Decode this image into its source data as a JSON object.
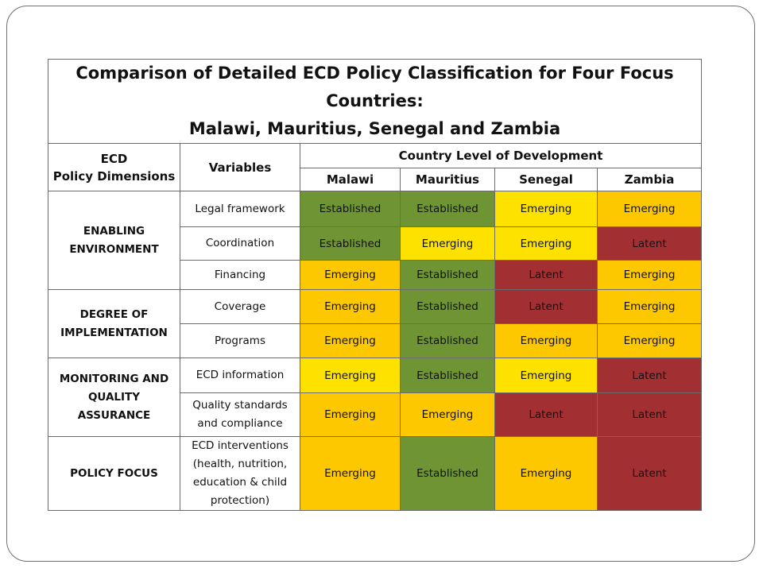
{
  "title_line1": "Comparison of Detailed ECD Policy Classification for Four Focus Countries:",
  "title_line2": "Malawi, Mauritius, Senegal and Zambia",
  "headers": {
    "dimensions_line1": "ECD",
    "dimensions_line2": "Policy Dimensions",
    "variables": "Variables",
    "level": "Country Level of Development",
    "countries": [
      "Malawi",
      "Mauritius",
      "Senegal",
      "Zambia"
    ]
  },
  "dimensions": [
    {
      "line1": "ENABLING",
      "line2": "ENVIRONMENT"
    },
    {
      "line1": "DEGREE OF",
      "line2": "IMPLEMENTATION"
    },
    {
      "line1": "MONITORING AND",
      "line2": "QUALITY ASSURANCE"
    },
    {
      "line1": "POLICY FOCUS",
      "line2": ""
    }
  ],
  "rows": [
    {
      "variable": [
        "Legal framework"
      ],
      "cells": [
        {
          "text": "Established",
          "color": "#6e9434"
        },
        {
          "text": "Established",
          "color": "#6e9434"
        },
        {
          "text": "Emerging",
          "color": "#fde200"
        },
        {
          "text": "Emerging",
          "color": "#fdc800"
        }
      ]
    },
    {
      "variable": [
        "Coordination"
      ],
      "cells": [
        {
          "text": "Established",
          "color": "#6e9434"
        },
        {
          "text": "Emerging",
          "color": "#fde200"
        },
        {
          "text": "Emerging",
          "color": "#fde200"
        },
        {
          "text": "Latent",
          "color": "#a23033"
        }
      ]
    },
    {
      "variable": [
        "Financing"
      ],
      "cells": [
        {
          "text": "Emerging",
          "color": "#fdc800"
        },
        {
          "text": "Established",
          "color": "#6e9434"
        },
        {
          "text": "Latent",
          "color": "#a23033"
        },
        {
          "text": "Emerging",
          "color": "#fdc800"
        }
      ]
    },
    {
      "variable": [
        "Coverage"
      ],
      "cells": [
        {
          "text": "Emerging",
          "color": "#fdc800"
        },
        {
          "text": "Established",
          "color": "#6e9434"
        },
        {
          "text": "Latent",
          "color": "#a23033"
        },
        {
          "text": "Emerging",
          "color": "#fdc800"
        }
      ]
    },
    {
      "variable": [
        "Programs"
      ],
      "cells": [
        {
          "text": "Emerging",
          "color": "#fdc800"
        },
        {
          "text": "Established",
          "color": "#6e9434"
        },
        {
          "text": "Emerging",
          "color": "#fdc800"
        },
        {
          "text": "Emerging",
          "color": "#fdc800"
        }
      ]
    },
    {
      "variable": [
        "ECD information"
      ],
      "cells": [
        {
          "text": "Emerging",
          "color": "#fde200"
        },
        {
          "text": "Established",
          "color": "#6e9434"
        },
        {
          "text": "Emerging",
          "color": "#fde200"
        },
        {
          "text": "Latent",
          "color": "#a23033"
        }
      ]
    },
    {
      "variable": [
        "Quality standards",
        "and compliance"
      ],
      "cells": [
        {
          "text": "Emerging",
          "color": "#fdc800"
        },
        {
          "text": "Emerging",
          "color": "#fdc800"
        },
        {
          "text": "Latent",
          "color": "#a23033"
        },
        {
          "text": "Latent",
          "color": "#a23033"
        }
      ]
    },
    {
      "variable": [
        "ECD interventions",
        "(health, nutrition,",
        "education & child",
        "protection)"
      ],
      "cells": [
        {
          "text": "Emerging",
          "color": "#fdc800"
        },
        {
          "text": "Established",
          "color": "#6e9434"
        },
        {
          "text": "Emerging",
          "color": "#fdc800"
        },
        {
          "text": "Latent",
          "color": "#a23033"
        }
      ]
    }
  ]
}
